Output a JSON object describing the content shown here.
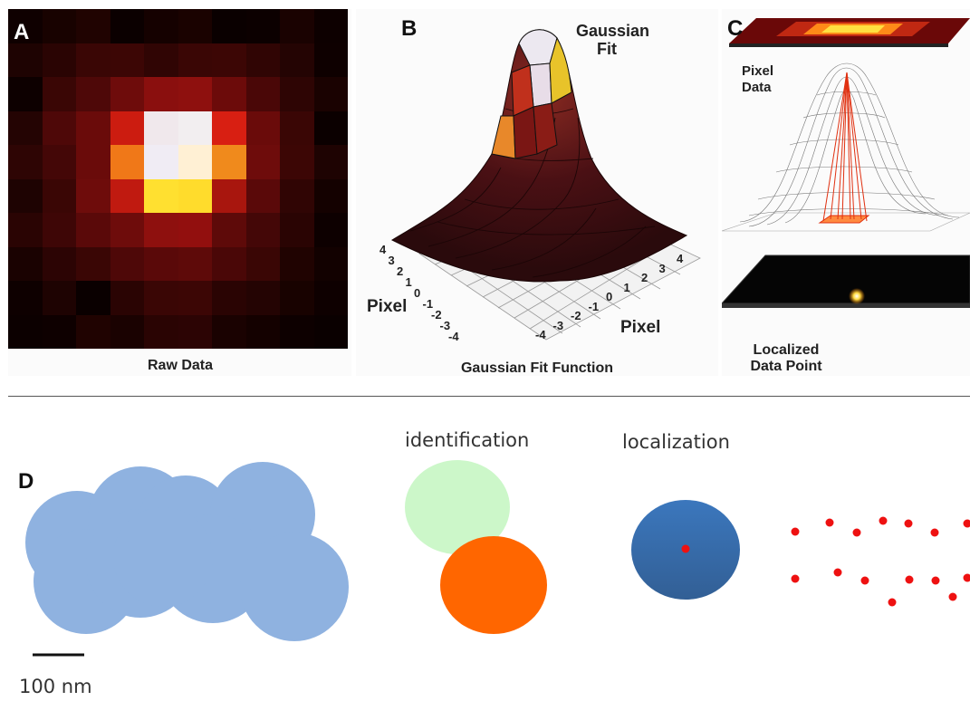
{
  "panel_a": {
    "letter": "A",
    "caption": "Raw Data",
    "grid": [
      [
        "#0f0000",
        "#180200",
        "#200301",
        "#0b0000",
        "#150100",
        "#1a0200",
        "#0a0000",
        "#0c0000",
        "#1a0201",
        "#0d0000"
      ],
      [
        "#1e0302",
        "#2a0403",
        "#3a0605",
        "#3c0605",
        "#300504",
        "#3a0605",
        "#3c0605",
        "#300504",
        "#240403",
        "#0e0000"
      ],
      [
        "#0d0000",
        "#3a0605",
        "#4e0808",
        "#6e0c0b",
        "#8a0f0e",
        "#8e100e",
        "#6c0b0a",
        "#4a0707",
        "#2e0504",
        "#1a0201"
      ],
      [
        "#240403",
        "#4e0808",
        "#6a0b0a",
        "#cc1c10",
        "#f0e8ec",
        "#f2eef0",
        "#d81f12",
        "#6a0b0a",
        "#3a0605",
        "#0b0000"
      ],
      [
        "#2e0504",
        "#440707",
        "#6a0b0a",
        "#f07818",
        "#f0ecf4",
        "#fff0d4",
        "#f08a1c",
        "#6e0c0b",
        "#3c0605",
        "#1e0302"
      ],
      [
        "#1e0302",
        "#3a0605",
        "#6e0c0b",
        "#c01a10",
        "#ffe030",
        "#ffdc2c",
        "#a8160e",
        "#5a0909",
        "#300504",
        "#140100"
      ],
      [
        "#2a0403",
        "#3e0606",
        "#5a0909",
        "#6e0c0b",
        "#8e100e",
        "#920f0e",
        "#5e0a09",
        "#440707",
        "#2a0403",
        "#0d0000"
      ],
      [
        "#1a0201",
        "#2c0404",
        "#3a0605",
        "#4e0808",
        "#5a0909",
        "#5e0a09",
        "#4a0707",
        "#3a0605",
        "#200301",
        "#120100"
      ],
      [
        "#0e0000",
        "#1e0302",
        "#0a0000",
        "#2a0403",
        "#3a0605",
        "#3c0605",
        "#2a0403",
        "#240403",
        "#180200",
        "#0e0000"
      ],
      [
        "#0c0000",
        "#0e0000",
        "#200301",
        "#1a0201",
        "#2a0403",
        "#2c0404",
        "#1a0201",
        "#140100",
        "#0d0000",
        "#0a0000"
      ]
    ]
  },
  "panel_b": {
    "letter": "B",
    "title": "Gaussian Fit",
    "caption": "Gaussian Fit Function",
    "axis_label_left": "Pixel",
    "axis_label_right": "Pixel",
    "ticks_left": [
      "4",
      "3",
      "2",
      "1",
      "0",
      "-1",
      "-2",
      "-3",
      "-4"
    ],
    "ticks_right": [
      "-4",
      "-3",
      "-2",
      "-1",
      "0",
      "1",
      "2",
      "3",
      "4"
    ]
  },
  "panel_c": {
    "letter": "C",
    "label_top": "Pixel Data",
    "label_bottom": "Localized Data Point"
  },
  "panel_d": {
    "letter": "D",
    "scale_label": "100 nm",
    "stage_identification": "identification",
    "stage_localization": "localization",
    "colors": {
      "cloud": "#8fb2e0",
      "ident_green": "#ccf7c9",
      "ident_orange": "#ff6600",
      "loc_blue": "#3a71b5",
      "dot_red": "#ee1111"
    }
  }
}
